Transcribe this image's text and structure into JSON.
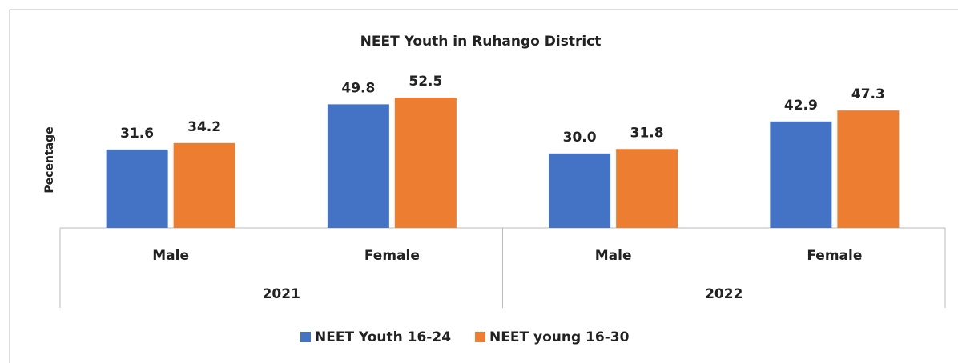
{
  "chart_data": {
    "type": "bar",
    "title": "NEET Youth  in Ruhango District",
    "y_label": "Pecentage",
    "groups": [
      {
        "name": "2021",
        "categories": [
          "Male",
          "Female"
        ]
      },
      {
        "name": "2022",
        "categories": [
          "Male",
          "Female"
        ]
      }
    ],
    "series": [
      {
        "name": "NEET Youth 16-24",
        "color": "#4472c4",
        "values": [
          31.6,
          49.8,
          30,
          42.9
        ],
        "value_labels": [
          "31.6",
          "49.8",
          "30.0",
          "42.9"
        ]
      },
      {
        "name": "NEET young 16-30",
        "color": "#ed7d31",
        "values": [
          34.2,
          52.5,
          31.8,
          47.3
        ],
        "value_labels": [
          "34.2",
          "52.5",
          "31.8",
          "47.3"
        ]
      }
    ],
    "legend": "bottom"
  }
}
